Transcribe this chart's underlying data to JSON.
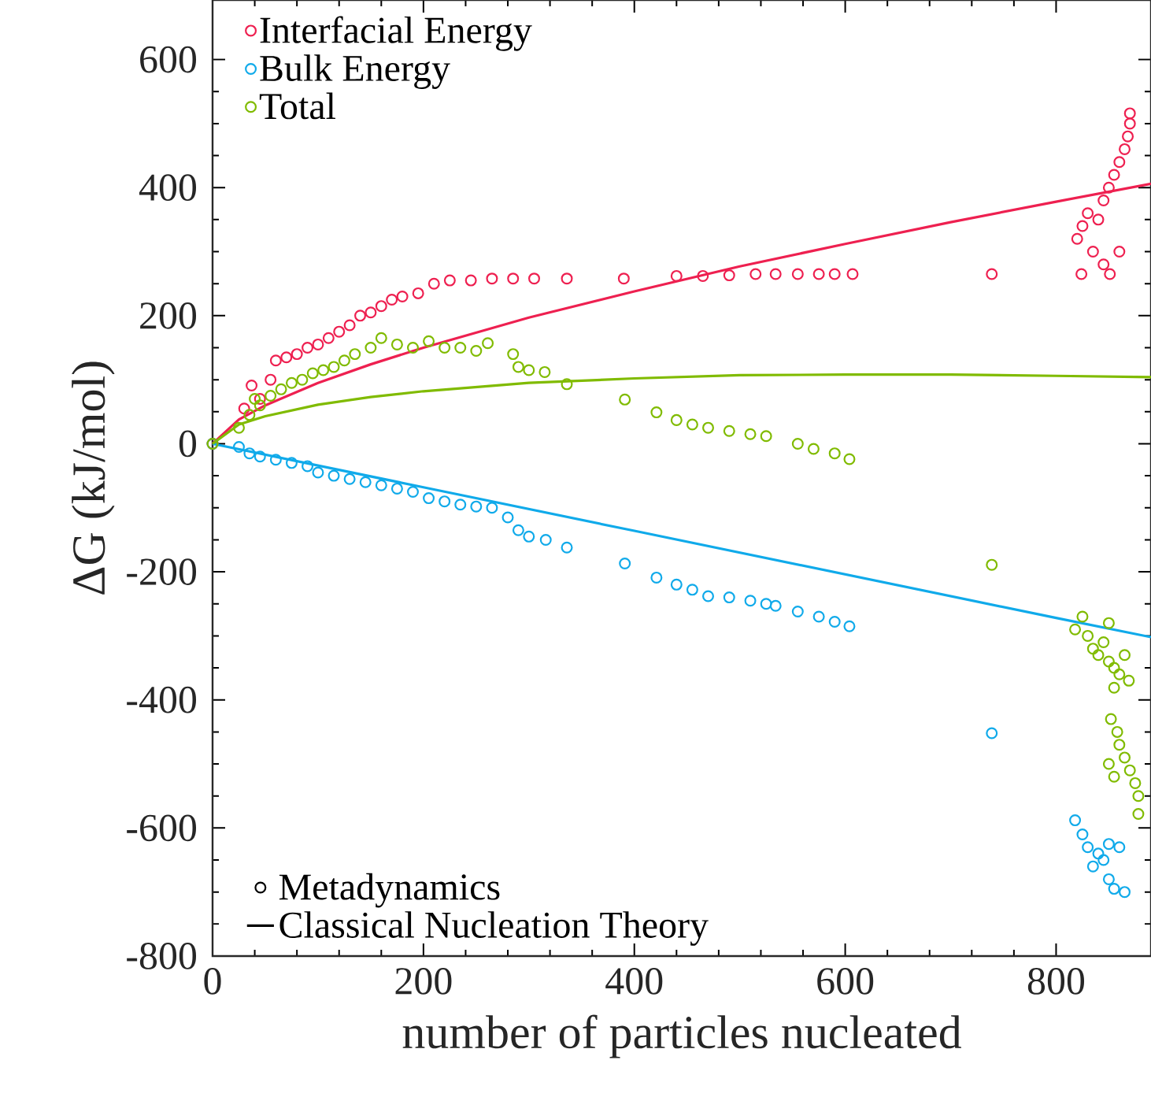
{
  "chart_data": {
    "type": "scatter",
    "xlabel": "number of particles nucleated",
    "ylabel": "ΔG (kJ/mol)",
    "xlim": [
      0,
      890
    ],
    "ylim": [
      -800,
      693
    ],
    "xticks": [
      0,
      200,
      400,
      600,
      800
    ],
    "yticks": [
      -800,
      -600,
      -400,
      -200,
      0,
      200,
      400,
      600
    ],
    "marker": "circle",
    "legend": "left",
    "grid": false,
    "series": [
      {
        "name": "Interfacial Energy",
        "color": "#ee2050",
        "x": [
          0,
          37,
          30,
          45,
          55,
          60,
          70,
          80,
          90,
          100,
          110,
          120,
          130,
          140,
          150,
          160,
          170,
          180,
          195,
          210,
          225,
          245,
          265,
          285,
          305,
          336,
          390,
          440,
          465,
          490,
          515,
          534,
          555,
          575,
          590,
          607,
          739,
          824,
          851,
          820,
          825,
          830,
          835,
          840,
          845,
          850,
          855,
          860,
          865,
          868,
          870,
          870,
          845,
          860
        ],
        "values": [
          0,
          91,
          55,
          70,
          100,
          130,
          135,
          140,
          150,
          155,
          165,
          175,
          185,
          200,
          205,
          215,
          225,
          230,
          235,
          250,
          255,
          255,
          258,
          258,
          258,
          258,
          258,
          262,
          262,
          263,
          265,
          265,
          265,
          265,
          265,
          265,
          265,
          265,
          265,
          320,
          340,
          360,
          300,
          350,
          380,
          400,
          420,
          440,
          460,
          480,
          500,
          516,
          280,
          300
        ]
      },
      {
        "name": "Bulk Energy",
        "color": "#10aaea",
        "x": [
          0,
          25,
          35,
          45,
          60,
          75,
          90,
          100,
          115,
          130,
          145,
          160,
          175,
          190,
          205,
          220,
          235,
          250,
          265,
          280,
          290,
          300,
          316,
          336,
          391,
          421,
          440,
          455,
          470,
          490,
          510,
          525,
          534,
          555,
          575,
          590,
          604,
          739,
          818,
          825,
          830,
          840,
          850,
          860,
          845,
          835,
          850,
          855,
          865
        ],
        "values": [
          0,
          -5,
          -15,
          -20,
          -25,
          -30,
          -35,
          -45,
          -50,
          -55,
          -60,
          -65,
          -70,
          -75,
          -85,
          -90,
          -95,
          -98,
          -100,
          -115,
          -135,
          -145,
          -150,
          -162,
          -187,
          -209,
          -220,
          -228,
          -238,
          -240,
          -245,
          -250,
          -253,
          -262,
          -270,
          -278,
          -285,
          -452,
          -588,
          -610,
          -630,
          -640,
          -625,
          -630,
          -650,
          -660,
          -680,
          -695,
          -700
        ]
      },
      {
        "name": "Total",
        "color": "#80bb00",
        "x": [
          0,
          25,
          35,
          40,
          45,
          55,
          65,
          75,
          85,
          95,
          105,
          115,
          125,
          135,
          150,
          160,
          175,
          190,
          205,
          220,
          235,
          250,
          261,
          285,
          290,
          300,
          315,
          336,
          391,
          421,
          440,
          455,
          470,
          490,
          510,
          525,
          555,
          570,
          590,
          604,
          739,
          818,
          825,
          830,
          835,
          840,
          845,
          850,
          855,
          860,
          865,
          869,
          855,
          850,
          852,
          858,
          860,
          865,
          870,
          875,
          878,
          878,
          850,
          855
        ],
        "values": [
          0,
          25,
          45,
          70,
          60,
          75,
          85,
          95,
          100,
          110,
          115,
          120,
          130,
          140,
          150,
          165,
          155,
          150,
          160,
          150,
          150,
          145,
          157,
          140,
          120,
          115,
          112,
          93,
          69,
          49,
          37,
          30,
          25,
          20,
          15,
          12,
          0,
          -8,
          -15,
          -24,
          -189,
          -290,
          -270,
          -300,
          -320,
          -330,
          -310,
          -340,
          -350,
          -360,
          -330,
          -370,
          -381,
          -280,
          -430,
          -450,
          -470,
          -490,
          -510,
          -530,
          -550,
          -578,
          -500,
          -520
        ]
      },
      {
        "type": "line",
        "marker": "none",
        "color": "#ee2050",
        "x": [
          0,
          25,
          50,
          100,
          150,
          200,
          300,
          400,
          500,
          600,
          700,
          800,
          890
        ],
        "values": [
          0,
          38,
          60,
          95,
          124,
          150,
          197,
          238,
          277,
          312,
          346,
          378,
          406
        ]
      },
      {
        "type": "line",
        "marker": "none",
        "color": "#10aaea",
        "x": [
          0,
          200,
          400,
          600,
          800,
          890
        ],
        "values": [
          0,
          -68,
          -136,
          -204,
          -272,
          -302
        ]
      },
      {
        "type": "line",
        "marker": "none",
        "color": "#80bb00",
        "x": [
          0,
          25,
          50,
          100,
          150,
          200,
          300,
          400,
          500,
          600,
          700,
          800,
          890
        ],
        "values": [
          0,
          30,
          43,
          61,
          73,
          82,
          95,
          102,
          107,
          108,
          108,
          106,
          104
        ]
      },
      {
        "name": "Metadynamics",
        "color": "#000000"
      },
      {
        "name": "Classical Nucleation Theory",
        "type": "line",
        "marker": "none",
        "color": "#000000"
      }
    ]
  }
}
